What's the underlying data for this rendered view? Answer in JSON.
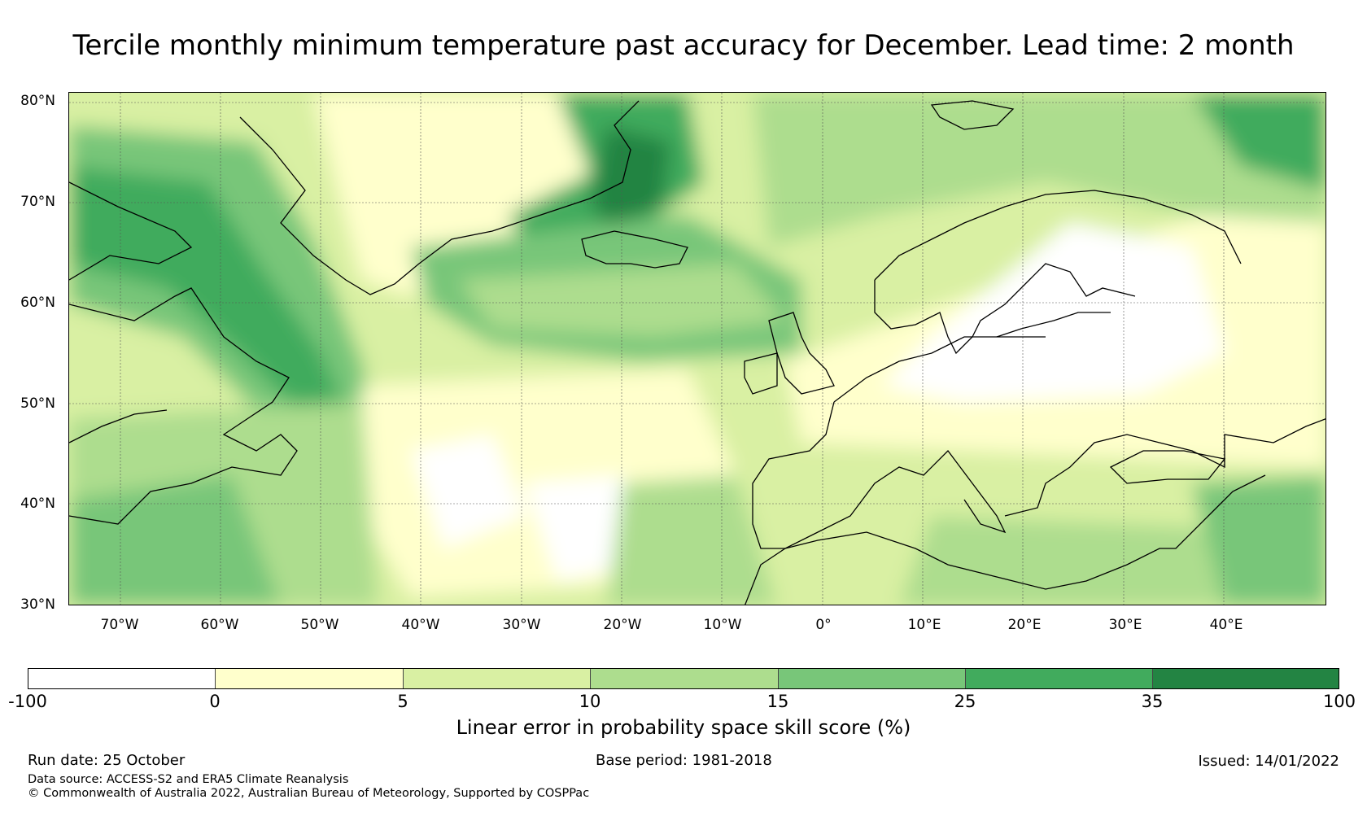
{
  "title": "Tercile monthly minimum temperature past accuracy for December. Lead time: 2 month",
  "map": {
    "latitude_labels": [
      "80°N",
      "70°N",
      "60°N",
      "50°N",
      "40°N",
      "30°N"
    ],
    "longitude_labels": [
      "70°W",
      "60°W",
      "50°W",
      "40°W",
      "30°W",
      "20°W",
      "10°W",
      "0°",
      "10°E",
      "20°E",
      "30°E",
      "40°E"
    ],
    "land_outline_color": "#000000",
    "gridline_color": "#555555"
  },
  "colorbar": {
    "label": "Linear error in probability space skill score (%)",
    "ticks": [
      "-100",
      "0",
      "5",
      "10",
      "15",
      "25",
      "35",
      "100"
    ],
    "colors": [
      "#ffffff",
      "#ffffcc",
      "#d9f0a3",
      "#addd8e",
      "#78c679",
      "#41ab5d",
      "#238443"
    ]
  },
  "footer": {
    "run_date": "Run date: 25 October",
    "base_period": "Base period: 1981-2018",
    "issued": "Issued: 14/01/2022",
    "data_source": "Data source: ACCESS-S2 and ERA5 Climate Reanalysis",
    "copyright": "© Commonwealth of Australia 2022, Australian Bureau of Meteorology, Supported by COSPPac"
  }
}
